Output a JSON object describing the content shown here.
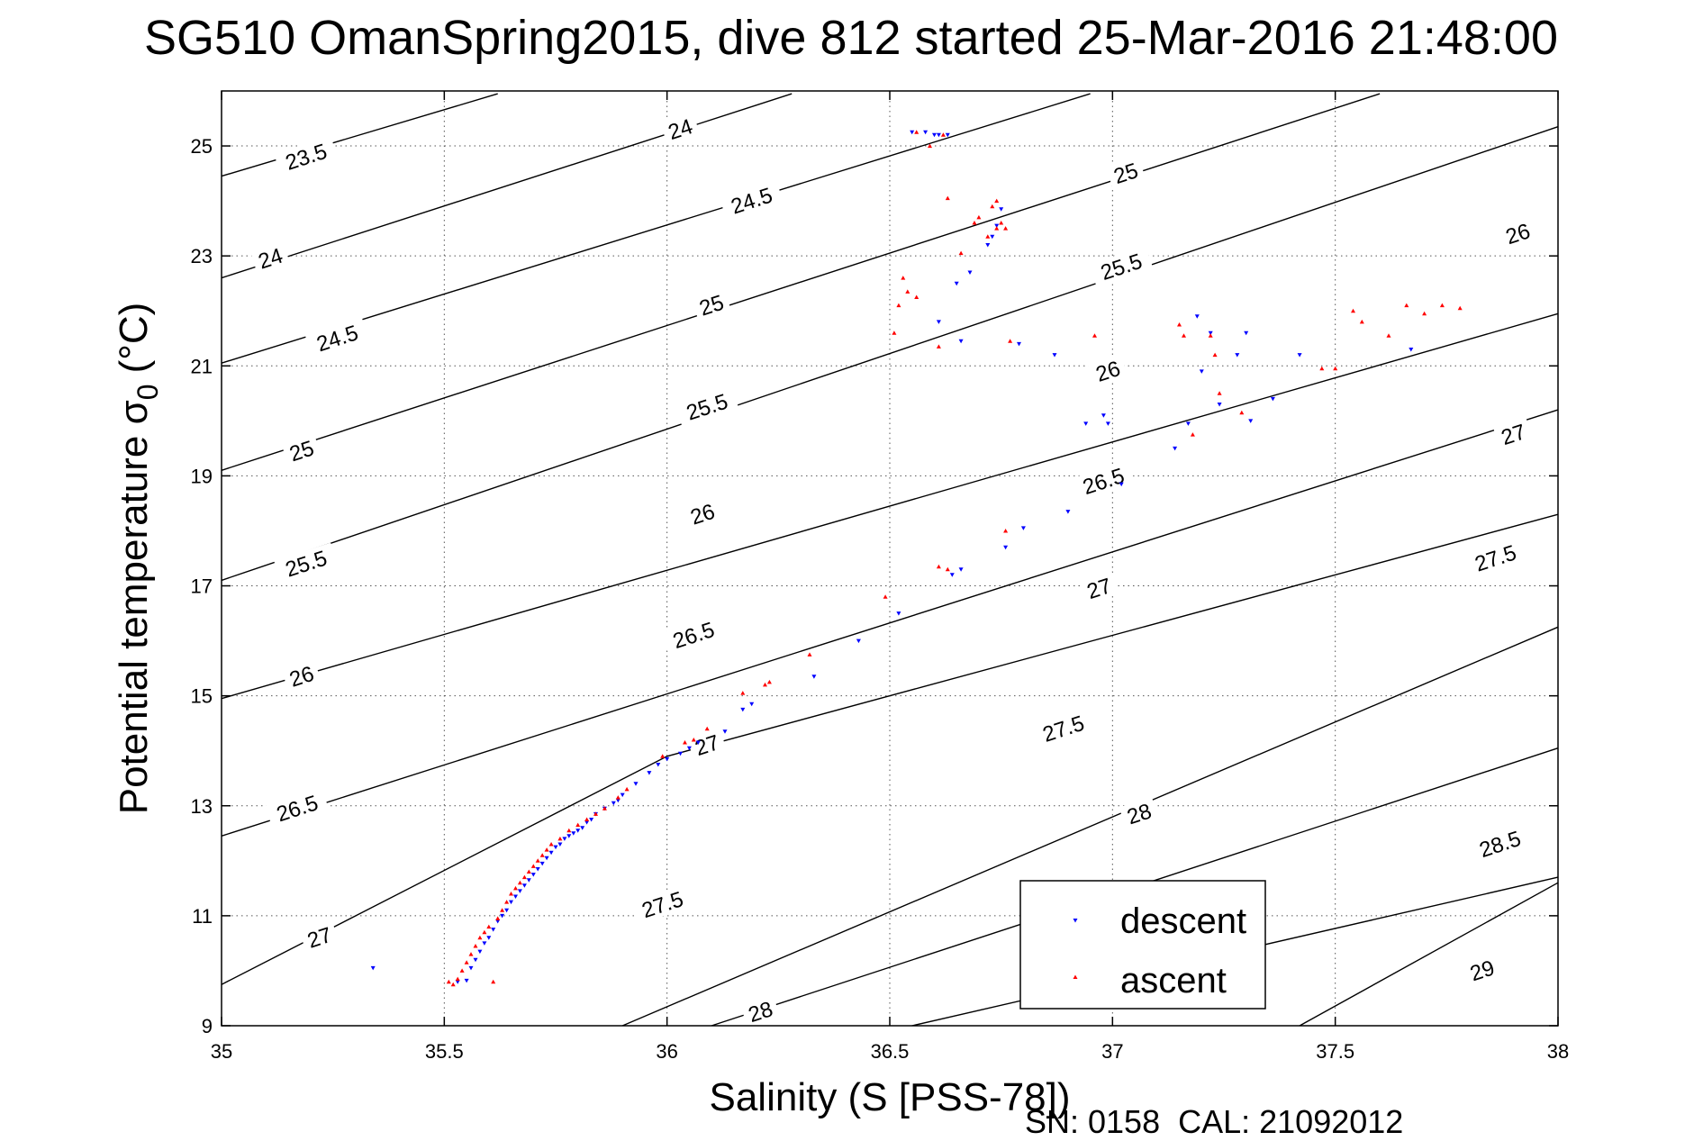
{
  "chart_data": {
    "type": "scatter",
    "title": "SG510 OmanSpring2015, dive 812 started 25-Mar-2016 21:48:00",
    "xlabel": "Salinity (S [PSS-78])",
    "ylabel_main": "Potential temperature σ",
    "ylabel_sub": "0",
    "ylabel_unit": "(°C)",
    "xlim": [
      35,
      38
    ],
    "ylim": [
      9,
      26
    ],
    "x_ticks": [
      35,
      35.5,
      36,
      36.5,
      37,
      37.5,
      38
    ],
    "x_tick_labels": [
      "35",
      "35.5",
      "36",
      "36.5",
      "37",
      "37.5",
      "38"
    ],
    "y_ticks": [
      9,
      11,
      13,
      15,
      17,
      19,
      21,
      23,
      25
    ],
    "y_tick_labels": [
      "9",
      "11",
      "13",
      "15",
      "17",
      "19",
      "21",
      "23",
      "25"
    ],
    "grid": true,
    "legend_position": "bottom-right",
    "footer": "SN: 0158  CAL: 21092012",
    "density_contours": [
      {
        "label": "23.5",
        "points": [
          [
            35.0,
            24.45
          ],
          [
            35.62,
            25.95
          ]
        ]
      },
      {
        "label": "24",
        "points": [
          [
            35.0,
            22.6
          ],
          [
            36.28,
            25.95
          ]
        ]
      },
      {
        "label": "24.5",
        "points": [
          [
            35.0,
            21.05
          ],
          [
            36.95,
            25.95
          ]
        ]
      },
      {
        "label": "25",
        "points": [
          [
            35.0,
            19.1
          ],
          [
            37.6,
            25.95
          ]
        ]
      },
      {
        "label": "25.5",
        "points": [
          [
            35.0,
            17.1
          ],
          [
            38.0,
            25.35
          ]
        ]
      },
      {
        "label": "26",
        "points": [
          [
            35.0,
            14.95
          ],
          [
            38.0,
            21.95
          ]
        ]
      },
      {
        "label": "26.5",
        "points": [
          [
            35.0,
            12.45
          ],
          [
            38.0,
            20.2
          ]
        ]
      },
      {
        "label": "27",
        "points": [
          [
            35.0,
            9.75
          ],
          [
            36.0,
            13.9
          ],
          [
            38.0,
            18.3
          ]
        ]
      },
      {
        "label": "27.5",
        "points": [
          [
            35.9,
            9.0
          ],
          [
            38.0,
            16.25
          ]
        ]
      },
      {
        "label": "28",
        "points": [
          [
            36.1,
            9.0
          ],
          [
            38.0,
            14.05
          ]
        ]
      },
      {
        "label": "28.5",
        "points": [
          [
            36.55,
            9.0
          ],
          [
            38.0,
            11.7
          ]
        ]
      },
      {
        "label": "29",
        "points": [
          [
            37.42,
            9.0
          ],
          [
            38.0,
            11.6
          ]
        ]
      }
    ],
    "contour_labels": [
      {
        "label": "23.5",
        "x": 35.19,
        "y": 24.8
      },
      {
        "label": "24",
        "x": 35.11,
        "y": 22.95
      },
      {
        "label": "24.5",
        "x": 35.26,
        "y": 21.5
      },
      {
        "label": "25",
        "x": 35.18,
        "y": 19.45
      },
      {
        "label": "25.5",
        "x": 35.19,
        "y": 17.4
      },
      {
        "label": "26",
        "x": 35.18,
        "y": 15.35
      },
      {
        "label": "26.5",
        "x": 35.17,
        "y": 12.95
      },
      {
        "label": "27",
        "x": 35.22,
        "y": 10.6
      },
      {
        "label": "24",
        "x": 36.03,
        "y": 25.3
      },
      {
        "label": "24.5",
        "x": 36.19,
        "y": 24.0
      },
      {
        "label": "25",
        "x": 36.1,
        "y": 22.1
      },
      {
        "label": "25.5",
        "x": 36.09,
        "y": 20.25
      },
      {
        "label": "26",
        "x": 36.08,
        "y": 18.3
      },
      {
        "label": "26.5",
        "x": 36.06,
        "y": 16.1
      },
      {
        "label": "27",
        "x": 36.09,
        "y": 14.1
      },
      {
        "label": "27.5",
        "x": 35.99,
        "y": 11.2
      },
      {
        "label": "28",
        "x": 36.21,
        "y": 9.25
      },
      {
        "label": "25",
        "x": 37.03,
        "y": 24.5
      },
      {
        "label": "25.5",
        "x": 37.02,
        "y": 22.8
      },
      {
        "label": "26",
        "x": 36.99,
        "y": 20.9
      },
      {
        "label": "26.5",
        "x": 36.98,
        "y": 18.9
      },
      {
        "label": "27",
        "x": 36.97,
        "y": 16.95
      },
      {
        "label": "27.5",
        "x": 36.89,
        "y": 14.4
      },
      {
        "label": "28",
        "x": 37.06,
        "y": 12.85
      },
      {
        "label": "26",
        "x": 37.91,
        "y": 23.4
      },
      {
        "label": "27",
        "x": 37.9,
        "y": 19.75
      },
      {
        "label": "27.5",
        "x": 37.86,
        "y": 17.5
      },
      {
        "label": "28.5",
        "x": 37.87,
        "y": 12.3
      },
      {
        "label": "29",
        "x": 37.83,
        "y": 10.0
      }
    ],
    "series": [
      {
        "name": "descent",
        "color": "#0000ff",
        "marker": "triangle-down",
        "points": [
          [
            35.34,
            10.05
          ],
          [
            35.53,
            9.8
          ],
          [
            35.55,
            9.82
          ],
          [
            35.56,
            10.05
          ],
          [
            35.57,
            10.2
          ],
          [
            35.58,
            10.35
          ],
          [
            35.59,
            10.5
          ],
          [
            35.6,
            10.6
          ],
          [
            35.61,
            10.75
          ],
          [
            35.62,
            10.9
          ],
          [
            35.63,
            11.0
          ],
          [
            35.64,
            11.1
          ],
          [
            35.65,
            11.25
          ],
          [
            35.66,
            11.35
          ],
          [
            35.67,
            11.45
          ],
          [
            35.68,
            11.55
          ],
          [
            35.69,
            11.65
          ],
          [
            35.7,
            11.75
          ],
          [
            35.71,
            11.85
          ],
          [
            35.72,
            11.95
          ],
          [
            35.73,
            12.05
          ],
          [
            35.74,
            12.15
          ],
          [
            35.75,
            12.25
          ],
          [
            35.76,
            12.3
          ],
          [
            35.77,
            12.4
          ],
          [
            35.78,
            12.45
          ],
          [
            35.79,
            12.5
          ],
          [
            35.8,
            12.55
          ],
          [
            35.81,
            12.6
          ],
          [
            35.82,
            12.7
          ],
          [
            35.83,
            12.75
          ],
          [
            35.84,
            12.85
          ],
          [
            35.86,
            12.95
          ],
          [
            35.88,
            13.05
          ],
          [
            35.89,
            13.1
          ],
          [
            35.9,
            13.2
          ],
          [
            35.93,
            13.4
          ],
          [
            35.96,
            13.6
          ],
          [
            35.98,
            13.75
          ],
          [
            36.0,
            13.85
          ],
          [
            36.03,
            13.95
          ],
          [
            36.05,
            14.05
          ],
          [
            36.07,
            14.15
          ],
          [
            36.13,
            14.35
          ],
          [
            36.17,
            14.75
          ],
          [
            36.19,
            14.85
          ],
          [
            36.33,
            15.35
          ],
          [
            36.43,
            16.0
          ],
          [
            36.52,
            16.5
          ],
          [
            36.64,
            17.2
          ],
          [
            36.66,
            17.3
          ],
          [
            36.76,
            17.7
          ],
          [
            36.8,
            18.05
          ],
          [
            36.9,
            18.35
          ],
          [
            37.02,
            18.85
          ],
          [
            36.94,
            19.95
          ],
          [
            36.98,
            20.1
          ],
          [
            36.99,
            19.95
          ],
          [
            37.14,
            19.5
          ],
          [
            37.17,
            19.95
          ],
          [
            37.2,
            20.9
          ],
          [
            37.24,
            20.3
          ],
          [
            37.31,
            20.0
          ],
          [
            37.36,
            20.4
          ],
          [
            37.19,
            21.9
          ],
          [
            37.22,
            21.6
          ],
          [
            37.3,
            21.6
          ],
          [
            37.28,
            21.2
          ],
          [
            37.42,
            21.2
          ],
          [
            37.67,
            21.3
          ],
          [
            36.55,
            25.25
          ],
          [
            36.58,
            25.25
          ],
          [
            36.6,
            25.2
          ],
          [
            36.61,
            25.2
          ],
          [
            36.63,
            25.2
          ],
          [
            36.61,
            21.8
          ],
          [
            36.66,
            21.45
          ],
          [
            36.79,
            21.4
          ],
          [
            36.87,
            21.2
          ],
          [
            36.65,
            22.5
          ],
          [
            36.68,
            22.7
          ],
          [
            36.72,
            23.2
          ],
          [
            36.73,
            23.35
          ],
          [
            36.74,
            23.55
          ],
          [
            36.75,
            23.85
          ]
        ]
      },
      {
        "name": "ascent",
        "color": "#ff0000",
        "marker": "triangle-up",
        "points": [
          [
            35.51,
            9.8
          ],
          [
            35.52,
            9.75
          ],
          [
            35.53,
            9.85
          ],
          [
            35.54,
            10.0
          ],
          [
            35.55,
            10.15
          ],
          [
            35.56,
            10.3
          ],
          [
            35.57,
            10.45
          ],
          [
            35.58,
            10.6
          ],
          [
            35.59,
            10.7
          ],
          [
            35.6,
            10.8
          ],
          [
            35.61,
            9.8
          ],
          [
            35.62,
            10.95
          ],
          [
            35.63,
            11.1
          ],
          [
            35.64,
            11.25
          ],
          [
            35.65,
            11.4
          ],
          [
            35.66,
            11.5
          ],
          [
            35.67,
            11.6
          ],
          [
            35.68,
            11.7
          ],
          [
            35.69,
            11.8
          ],
          [
            35.7,
            11.9
          ],
          [
            35.71,
            12.0
          ],
          [
            35.72,
            12.1
          ],
          [
            35.73,
            12.2
          ],
          [
            35.74,
            12.3
          ],
          [
            35.76,
            12.4
          ],
          [
            35.78,
            12.55
          ],
          [
            35.8,
            12.65
          ],
          [
            35.82,
            12.75
          ],
          [
            35.84,
            12.85
          ],
          [
            35.86,
            12.95
          ],
          [
            35.89,
            13.15
          ],
          [
            35.91,
            13.3
          ],
          [
            35.99,
            13.9
          ],
          [
            36.04,
            14.15
          ],
          [
            36.06,
            14.2
          ],
          [
            36.09,
            14.4
          ],
          [
            36.17,
            15.05
          ],
          [
            36.22,
            15.2
          ],
          [
            36.23,
            15.25
          ],
          [
            36.32,
            15.75
          ],
          [
            36.49,
            16.8
          ],
          [
            36.61,
            17.35
          ],
          [
            36.63,
            17.3
          ],
          [
            36.76,
            18.0
          ],
          [
            36.51,
            21.6
          ],
          [
            36.52,
            22.1
          ],
          [
            36.53,
            22.6
          ],
          [
            36.54,
            22.35
          ],
          [
            36.56,
            22.25
          ],
          [
            36.61,
            21.35
          ],
          [
            36.63,
            24.05
          ],
          [
            36.66,
            23.05
          ],
          [
            36.77,
            21.45
          ],
          [
            36.96,
            21.55
          ],
          [
            37.15,
            21.75
          ],
          [
            37.16,
            21.55
          ],
          [
            37.22,
            21.55
          ],
          [
            37.23,
            21.2
          ],
          [
            37.18,
            19.75
          ],
          [
            37.24,
            20.5
          ],
          [
            37.29,
            20.15
          ],
          [
            37.47,
            20.95
          ],
          [
            37.5,
            20.95
          ],
          [
            37.54,
            22.0
          ],
          [
            37.56,
            21.8
          ],
          [
            37.62,
            21.55
          ],
          [
            37.66,
            22.1
          ],
          [
            37.7,
            21.95
          ],
          [
            37.74,
            22.1
          ],
          [
            37.78,
            22.05
          ],
          [
            36.59,
            25.0
          ],
          [
            36.56,
            25.25
          ],
          [
            36.62,
            25.2
          ],
          [
            36.69,
            23.6
          ],
          [
            36.7,
            23.7
          ],
          [
            36.72,
            23.35
          ],
          [
            36.73,
            23.9
          ],
          [
            36.74,
            23.5
          ],
          [
            36.75,
            23.6
          ],
          [
            36.76,
            23.5
          ],
          [
            36.74,
            24.0
          ]
        ]
      }
    ]
  }
}
